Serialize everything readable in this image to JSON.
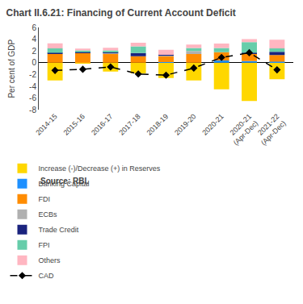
{
  "chart_data": {
    "type": "bar",
    "title": "Chart II.6.21: Financing of Current Account Deficit",
    "ylabel": "Per cent of GDP",
    "source": "Source: RBI.",
    "categories": [
      "2014-15",
      "2015-16",
      "2016-17",
      "2017-18",
      "2018-19",
      "2019-20",
      "2020-21",
      "2020-21\n(Apr-Dec)",
      "2021-22\n(Apr-Dec)"
    ],
    "series": [
      {
        "name": "Increase (-)/Decrease (+) in Reserves",
        "color": "#FFD700",
        "values": [
          -3.0,
          -0.1,
          -1.5,
          -1.8,
          -2.6,
          -3.0,
          -4.5,
          -6.5,
          -2.8
        ]
      },
      {
        "name": "Banking Capital",
        "color": "#1E90FF",
        "values": [
          0.0,
          0.0,
          0.0,
          0.0,
          0.1,
          0.0,
          0.4,
          0.3,
          0.2
        ]
      },
      {
        "name": "FDI",
        "color": "#FF8C00",
        "values": [
          1.5,
          1.7,
          1.6,
          1.1,
          1.0,
          1.5,
          1.4,
          1.3,
          1.1
        ]
      },
      {
        "name": "ECBs",
        "color": "#B0B0B0",
        "values": [
          0.0,
          0.0,
          0.1,
          0.0,
          0.15,
          0.5,
          0.0,
          0.0,
          0.0
        ]
      },
      {
        "name": "Trade Credit",
        "color": "#1A237E",
        "values": [
          0.2,
          0.1,
          0.15,
          0.55,
          0.1,
          0.0,
          0.0,
          0.1,
          0.55
        ]
      },
      {
        "name": "FPI",
        "color": "#66CDAA",
        "values": [
          0.75,
          0.3,
          0.25,
          1.15,
          0.0,
          0.5,
          0.7,
          1.8,
          0.6
        ]
      },
      {
        "name": "Others",
        "color": "#FFB6C1",
        "values": [
          0.85,
          0.3,
          0.45,
          0.6,
          0.85,
          0.6,
          0.75,
          0.5,
          1.45
        ]
      },
      {
        "name": "CAD",
        "type": "line",
        "color": "black",
        "line_style": "dashed",
        "marker": "diamond",
        "values": [
          -1.3,
          -1.1,
          -0.7,
          -1.9,
          -2.1,
          -0.9,
          0.9,
          1.7,
          -1.2
        ]
      }
    ],
    "ylim": [
      -8,
      6
    ],
    "yticks": [
      -8,
      -6,
      -4,
      -2,
      0,
      2,
      4,
      6
    ],
    "stacked": true,
    "legend": "bottom",
    "grid": false
  }
}
